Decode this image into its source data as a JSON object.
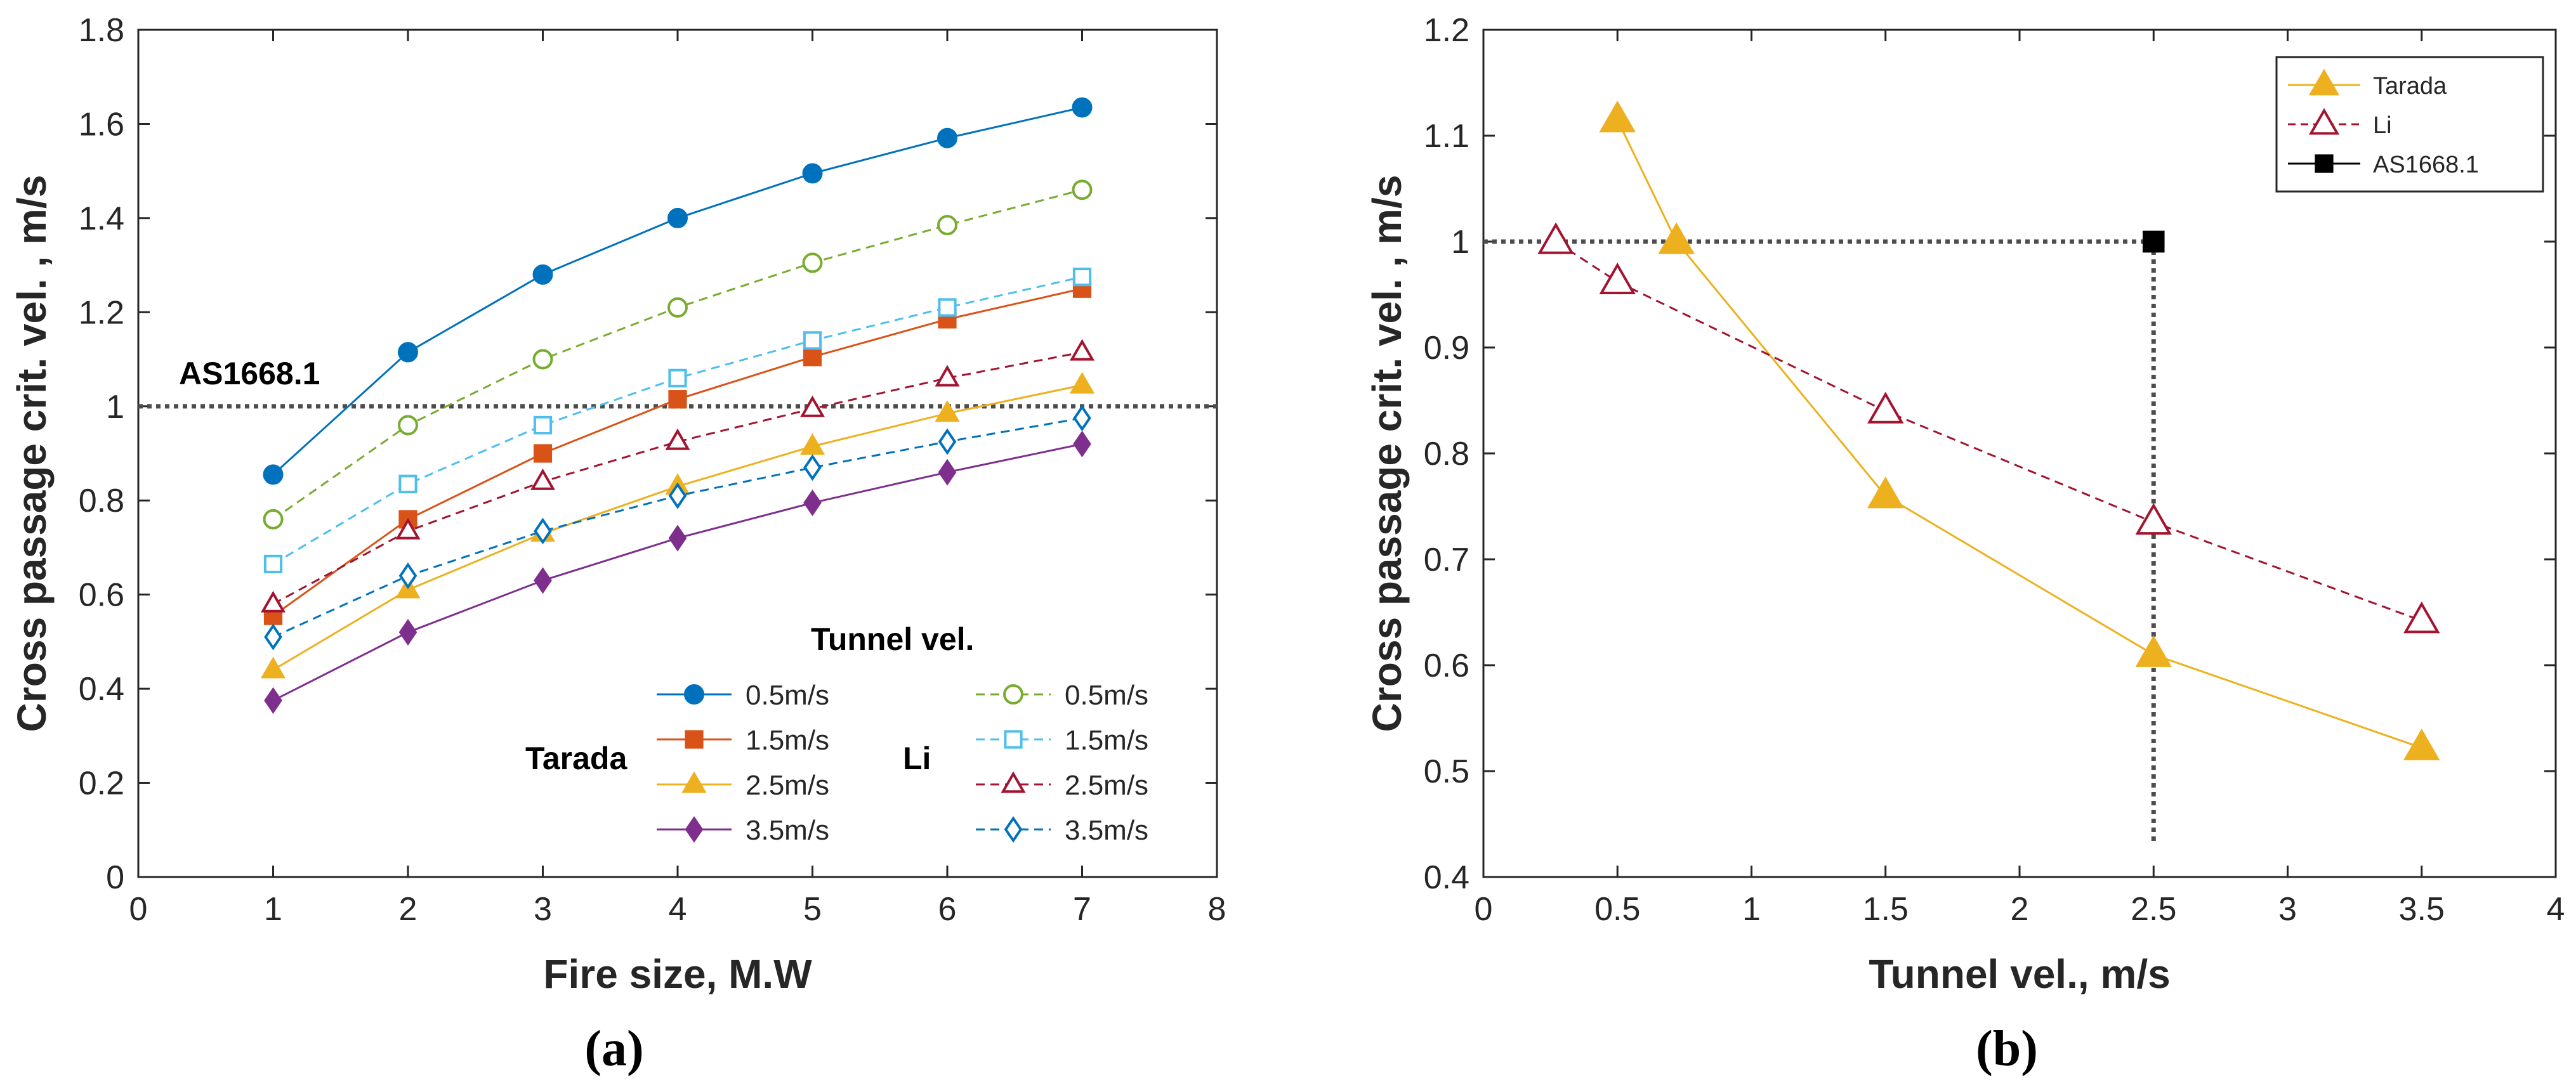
{
  "chart_data": [
    {
      "type": "line",
      "panel_label": "(a)",
      "xlabel": "Fire size, M.W",
      "ylabel": "Cross passage crit. vel. , m/s",
      "xlim": [
        0,
        8
      ],
      "ylim": [
        0,
        1.8
      ],
      "xticks": [
        "0",
        "1",
        "2",
        "3",
        "4",
        "5",
        "6",
        "7",
        "8"
      ],
      "yticks": [
        "0",
        "0.2",
        "0.4",
        "0.6",
        "0.8",
        "1",
        "1.2",
        "1.4",
        "1.6",
        "1.8"
      ],
      "reference": {
        "label": "AS1668.1",
        "value": 1.0
      },
      "legend_title": "Tunnel vel.",
      "legend_group_labels": [
        "Tarada",
        "Li"
      ],
      "x": [
        1,
        2,
        3,
        4,
        5,
        6,
        7
      ],
      "series": [
        {
          "group": "Tarada",
          "name": "0.5m/s",
          "color": "#0072BD",
          "marker": "circle",
          "filled": true,
          "dashed": false,
          "values": [
            0.855,
            1.115,
            1.28,
            1.4,
            1.495,
            1.57,
            1.635
          ]
        },
        {
          "group": "Tarada",
          "name": "1.5m/s",
          "color": "#D95319",
          "marker": "square",
          "filled": true,
          "dashed": false,
          "values": [
            0.555,
            0.76,
            0.9,
            1.015,
            1.105,
            1.185,
            1.25
          ]
        },
        {
          "group": "Tarada",
          "name": "2.5m/s",
          "color": "#EDB120",
          "marker": "triangle",
          "filled": true,
          "dashed": false,
          "values": [
            0.44,
            0.61,
            0.73,
            0.83,
            0.915,
            0.985,
            1.045
          ]
        },
        {
          "group": "Tarada",
          "name": "3.5m/s",
          "color": "#7E2F8E",
          "marker": "diamond",
          "filled": true,
          "dashed": false,
          "values": [
            0.375,
            0.52,
            0.63,
            0.72,
            0.795,
            0.86,
            0.92
          ]
        },
        {
          "group": "Li",
          "name": "0.5m/s",
          "color": "#77AC30",
          "marker": "circle",
          "filled": false,
          "dashed": true,
          "values": [
            0.76,
            0.96,
            1.1,
            1.21,
            1.305,
            1.385,
            1.46
          ]
        },
        {
          "group": "Li",
          "name": "1.5m/s",
          "color": "#4DBEEE",
          "marker": "square",
          "filled": false,
          "dashed": true,
          "values": [
            0.665,
            0.835,
            0.96,
            1.06,
            1.14,
            1.21,
            1.275
          ]
        },
        {
          "group": "Li",
          "name": "2.5m/s",
          "color": "#A2142F",
          "marker": "triangle",
          "filled": false,
          "dashed": true,
          "values": [
            0.58,
            0.735,
            0.84,
            0.925,
            0.995,
            1.06,
            1.115
          ]
        },
        {
          "group": "Li",
          "name": "3.5m/s",
          "color": "#0072BD",
          "marker": "diamond",
          "filled": false,
          "dashed": true,
          "values": [
            0.51,
            0.64,
            0.735,
            0.81,
            0.87,
            0.925,
            0.975
          ]
        }
      ]
    },
    {
      "type": "line",
      "panel_label": "(b)",
      "xlabel": "Tunnel vel., m/s",
      "ylabel": "Cross passage crit. vel. , m/s",
      "xlim": [
        0,
        4
      ],
      "ylim": [
        0.4,
        1.2
      ],
      "xticks": [
        "0",
        "0.5",
        "1",
        "1.5",
        "2",
        "2.5",
        "3",
        "3.5",
        "4"
      ],
      "yticks": [
        "0.4",
        "0.5",
        "0.6",
        "0.7",
        "0.8",
        "0.9",
        "1",
        "1.1",
        "1.2"
      ],
      "legend_position": "top-right",
      "series": [
        {
          "name": "Tarada",
          "color": "#EDB120",
          "marker": "triangle",
          "filled": true,
          "dashed": false,
          "x": [
            0.5,
            0.72,
            1.5,
            2.5,
            3.5
          ],
          "values": [
            1.115,
            1.0,
            0.76,
            0.61,
            0.522
          ]
        },
        {
          "name": "Li",
          "color": "#A2142F",
          "marker": "triangle",
          "filled": false,
          "dashed": true,
          "x": [
            0.27,
            0.5,
            1.5,
            2.5,
            3.5
          ],
          "values": [
            1.0,
            0.962,
            0.84,
            0.735,
            0.642
          ]
        },
        {
          "name": "AS1668.1",
          "color": "#000000",
          "marker": "square",
          "filled": true,
          "dashed": false,
          "x": [
            2.5
          ],
          "values": [
            1.0
          ]
        }
      ],
      "reference_lines": {
        "h_value": 1.0,
        "h_x_range": [
          0,
          2.5
        ],
        "v_value": 2.5,
        "v_y_range": [
          0.43,
          1.0
        ]
      }
    }
  ]
}
